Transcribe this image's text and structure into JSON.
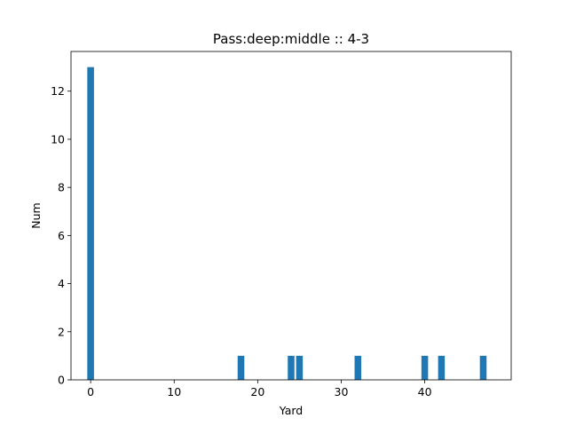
{
  "chart_data": {
    "type": "bar",
    "title": "Pass:deep:middle :: 4-3",
    "xlabel": "Yard",
    "ylabel": "Num",
    "x": [
      0,
      18,
      24,
      25,
      32,
      40,
      42,
      47
    ],
    "values": [
      13,
      1,
      1,
      1,
      1,
      1,
      1,
      1
    ],
    "bar_width": 0.8,
    "xlim": [
      -2.35,
      50.35
    ],
    "ylim": [
      0,
      13.65
    ],
    "xticks": [
      0,
      10,
      20,
      30,
      40
    ],
    "yticks": [
      0,
      2,
      4,
      6,
      8,
      10,
      12
    ],
    "grid": false,
    "colors": {
      "bar": "#1f77b4",
      "axis": "#000000",
      "background": "#ffffff"
    }
  }
}
